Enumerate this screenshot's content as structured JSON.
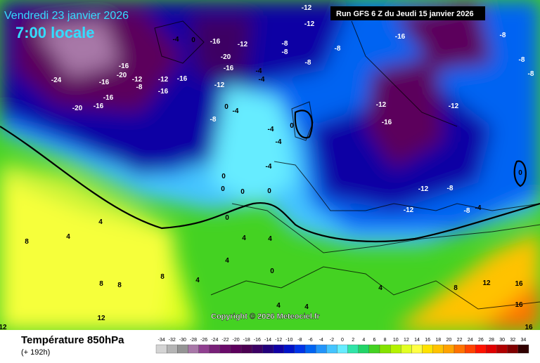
{
  "header": {
    "date": "Vendredi 23 janvier 2026",
    "time": "7:00 locale",
    "run": "Run GFS 6 Z du Jeudi 15 janvier 2026"
  },
  "copyright": "Copyright © 2026 Meteociel.fr",
  "legend": {
    "title": "Température 850hPa",
    "lead_time": "(+ 192h)",
    "ticks": [
      -34,
      -32,
      -30,
      -28,
      -26,
      -24,
      -22,
      -20,
      -18,
      -16,
      -14,
      -12,
      -10,
      -8,
      -6,
      -4,
      -2,
      0,
      2,
      4,
      6,
      8,
      10,
      12,
      14,
      16,
      18,
      20,
      22,
      24,
      26,
      28,
      30,
      32,
      34
    ],
    "colors": [
      "#d4d4d4",
      "#b4b4b4",
      "#949494",
      "#a878a8",
      "#904090",
      "#782078",
      "#6a0a6a",
      "#5c005c",
      "#4c0052",
      "#3c0064",
      "#22007c",
      "#1000a4",
      "#0012c8",
      "#0034e8",
      "#0064f2",
      "#2294fa",
      "#44c4ff",
      "#66ecff",
      "#30e4a8",
      "#22d468",
      "#44d222",
      "#84e200",
      "#b4f200",
      "#e2ff22",
      "#ffff44",
      "#ffe200",
      "#ffc200",
      "#ffa200",
      "#ff7200",
      "#ff4200",
      "#ff1200",
      "#e00000",
      "#b00000",
      "#800000",
      "#300000"
    ]
  },
  "map": {
    "contour_labels": [
      -24,
      -20,
      -16,
      -16,
      -16,
      -16,
      -20,
      -12,
      -8,
      -12,
      -16,
      -16,
      -4,
      0,
      -16,
      -20,
      -16,
      -12,
      -12,
      -4,
      -4,
      -8,
      -8,
      -8,
      -8,
      -16,
      -12,
      -16,
      -12,
      -8,
      -8,
      -8,
      0,
      -4,
      -8,
      -4,
      -4,
      -4,
      0,
      0,
      0,
      0,
      0,
      -12,
      -12,
      -8,
      -8,
      -4,
      0,
      0,
      4,
      4,
      0,
      4,
      4,
      8,
      8,
      8,
      4,
      8,
      4,
      4,
      8,
      12,
      16,
      16,
      16,
      12,
      12,
      4,
      4,
      -12,
      -12
    ]
  }
}
